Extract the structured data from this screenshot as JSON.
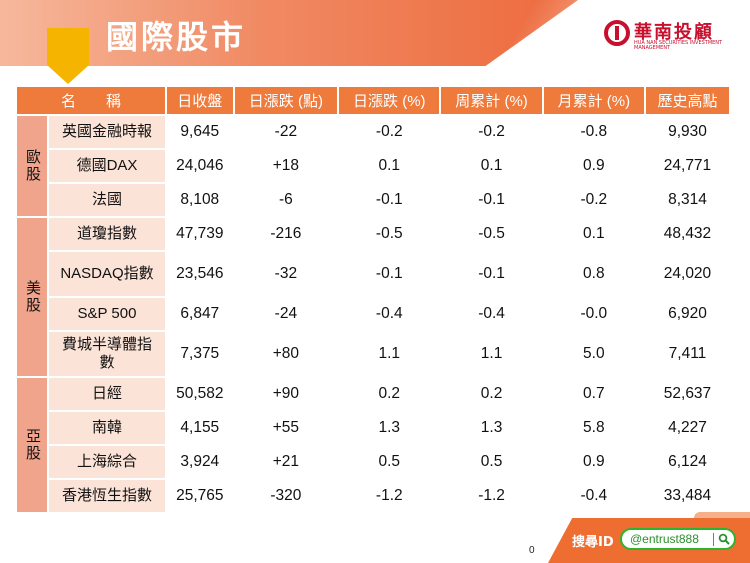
{
  "header": {
    "title": "國際股市",
    "logo_text": "華南投顧",
    "logo_en": "HUA NAN SECURITIES INVESTMENT MANAGEMENT"
  },
  "table": {
    "columns": [
      "名　　稱",
      "日收盤",
      "日漲跌 (點)",
      "日漲跌 (%)",
      "周累計 (%)",
      "月累計 (%)",
      "歷史高點"
    ],
    "regions": [
      {
        "label": "歐股",
        "rows": [
          {
            "name": "英國金融時報",
            "close": "9,645",
            "chg": "-22",
            "dir": "down",
            "day_pct": "-0.2",
            "week_pct": "-0.2",
            "month_pct": "-0.8",
            "high": "9,930"
          },
          {
            "name": "德國DAX",
            "close": "24,046",
            "chg": "+18",
            "dir": "up",
            "day_pct": "0.1",
            "week_pct": "0.1",
            "month_pct": "0.9",
            "high": "24,771"
          },
          {
            "name": "法國",
            "close": "8,108",
            "chg": "-6",
            "dir": "down",
            "day_pct": "-0.1",
            "week_pct": "-0.1",
            "month_pct": "-0.2",
            "high": "8,314"
          }
        ]
      },
      {
        "label": "美股",
        "rows": [
          {
            "name": "道瓊指數",
            "close": "47,739",
            "chg": "-216",
            "dir": "down",
            "day_pct": "-0.5",
            "week_pct": "-0.5",
            "month_pct": "0.1",
            "high": "48,432"
          },
          {
            "name": "NASDAQ指數",
            "close": "23,546",
            "chg": "-32",
            "dir": "down",
            "day_pct": "-0.1",
            "week_pct": "-0.1",
            "month_pct": "0.8",
            "high": "24,020"
          },
          {
            "name": "S&P 500",
            "close": "6,847",
            "chg": "-24",
            "dir": "down",
            "day_pct": "-0.4",
            "week_pct": "-0.4",
            "month_pct": "-0.0",
            "high": "6,920"
          },
          {
            "name": "費城半導體指數",
            "close": "7,375",
            "chg": "+80",
            "dir": "up",
            "day_pct": "1.1",
            "week_pct": "1.1",
            "month_pct": "5.0",
            "high": "7,411"
          }
        ]
      },
      {
        "label": "亞股",
        "rows": [
          {
            "name": "日經",
            "close": "50,582",
            "chg": "+90",
            "dir": "up",
            "day_pct": "0.2",
            "week_pct": "0.2",
            "month_pct": "0.7",
            "high": "52,637"
          },
          {
            "name": "南韓",
            "close": "4,155",
            "chg": "+55",
            "dir": "up",
            "day_pct": "1.3",
            "week_pct": "1.3",
            "month_pct": "5.8",
            "high": "4,227"
          },
          {
            "name": "上海綜合",
            "close": "3,924",
            "chg": "+21",
            "dir": "up",
            "day_pct": "0.5",
            "week_pct": "0.5",
            "month_pct": "0.9",
            "high": "6,124"
          },
          {
            "name": "香港恆生指數",
            "close": "25,765",
            "chg": "-320",
            "dir": "down",
            "day_pct": "-1.2",
            "week_pct": "-1.2",
            "month_pct": "-0.4",
            "high": "33,484"
          }
        ]
      }
    ]
  },
  "footer": {
    "page_number": "0",
    "search_label": "搜尋ID",
    "line_id": "@entrust888"
  },
  "colors": {
    "header_orange": "#ee7a3c",
    "region_cell": "#f0a48c",
    "name_cell": "#fbe3d8",
    "up": "#e8102a",
    "down": "#1a9c3a",
    "logo_red": "#c8102e",
    "line_green": "#2db32d"
  }
}
